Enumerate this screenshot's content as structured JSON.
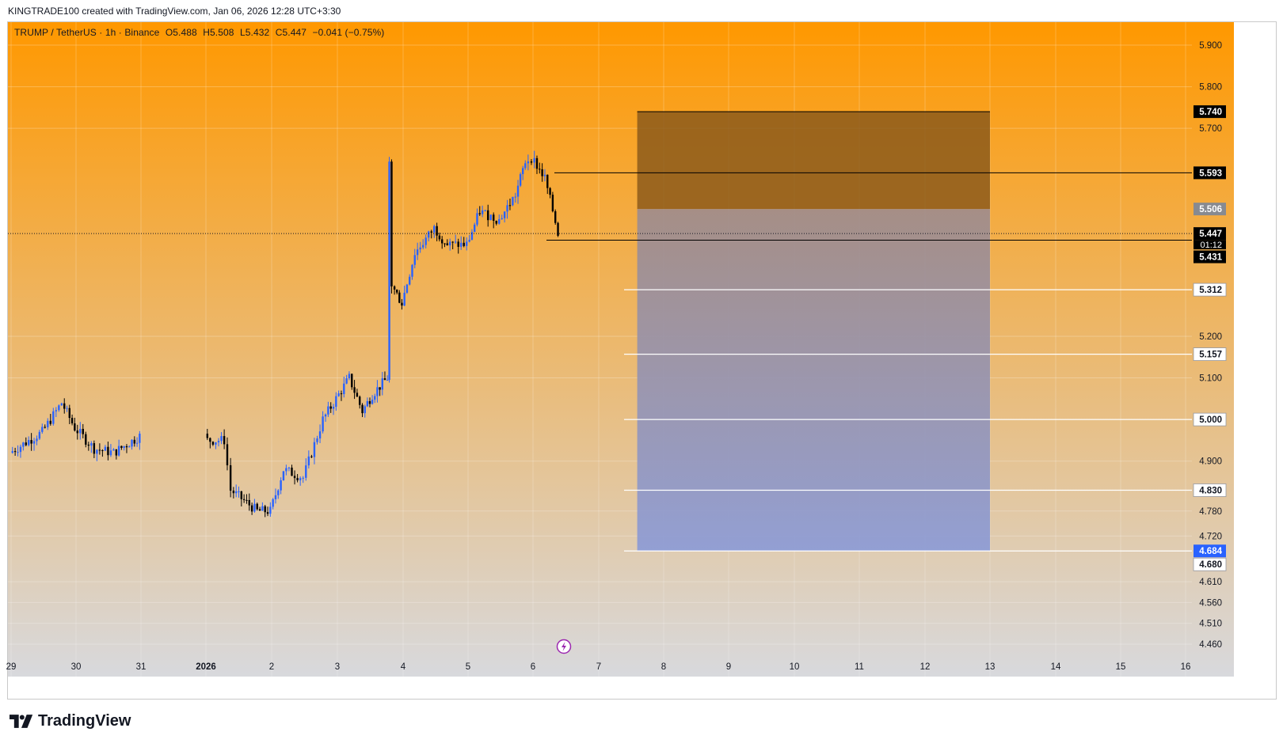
{
  "header": {
    "created_text": "KINGTRADE100 created with TradingView.com, Jan 06, 2026 12:28 UTC+3:30"
  },
  "legend": {
    "symbol": "TRUMP / TetherUS · 1h · Binance",
    "open": "O5.488",
    "high": "H5.508",
    "low": "L5.432",
    "close": "C5.447",
    "change": "−0.041 (−0.75%)"
  },
  "branding": {
    "name": "TradingView"
  },
  "colors": {
    "bg_top": "#ff9800",
    "bg_bottom": "#d8d9dd",
    "candle_up": "#2962ff",
    "candle_down": "#000000",
    "stop_zone": "#8c5a1b",
    "target_zone": "#8c9bd6"
  },
  "chart_data": {
    "type": "candlestick",
    "symbol": "TRUMP / TetherUS",
    "timeframe": "1h",
    "exchange": "Binance",
    "x_tick_labels": [
      "29",
      "30",
      "31",
      "2026",
      "2",
      "3",
      "4",
      "5",
      "6",
      "7",
      "8",
      "9",
      "10",
      "11",
      "12",
      "13",
      "14",
      "15",
      "16"
    ],
    "y_tick_labels": [
      "5.900",
      "5.800",
      "5.700",
      "5.200",
      "5.100",
      "4.900",
      "4.780",
      "4.720",
      "4.610",
      "4.560",
      "4.510",
      "4.460"
    ],
    "ylim": [
      4.43,
      5.96
    ],
    "last_price": 5.447,
    "countdown": "01:12",
    "price_path": [
      [
        "29",
        4.92
      ],
      [
        "29.5",
        4.97
      ],
      [
        "29.8",
        5.04
      ],
      [
        "30",
        4.98
      ],
      [
        "30.3",
        4.93
      ],
      [
        "30.6",
        4.92
      ],
      [
        "31",
        4.96
      ],
      [
        "31.3",
        4.93
      ],
      [
        "31.6",
        4.91
      ],
      [
        "2026",
        4.95
      ],
      [
        "1.3",
        4.95
      ],
      [
        "1.4",
        4.83
      ],
      [
        "1.8",
        4.78
      ],
      [
        "2",
        4.78
      ],
      [
        "2.2",
        4.88
      ],
      [
        "2.5",
        4.86
      ],
      [
        "2.8",
        5.0
      ],
      [
        "3",
        5.05
      ],
      [
        "3.2",
        5.1
      ],
      [
        "3.4",
        5.02
      ],
      [
        "3.55",
        5.06
      ],
      [
        "3.78",
        5.1
      ],
      [
        "3.8",
        5.62
      ],
      [
        "3.85",
        5.32
      ],
      [
        "4",
        5.28
      ],
      [
        "4.2",
        5.4
      ],
      [
        "4.5",
        5.46
      ],
      [
        "4.7",
        5.42
      ],
      [
        "5",
        5.42
      ],
      [
        "5.2",
        5.5
      ],
      [
        "5.5",
        5.48
      ],
      [
        "5.75",
        5.54
      ],
      [
        "5.9",
        5.62
      ],
      [
        "6",
        5.63
      ],
      [
        "6.2",
        5.58
      ],
      [
        "6.4",
        5.45
      ]
    ],
    "position": {
      "type": "short",
      "start_x": "7.3",
      "end_x": "13",
      "stop": 5.74,
      "entry": 5.506,
      "target": 4.684
    },
    "horizontal_lines": [
      {
        "price": 5.593,
        "label": "5.593",
        "style": "dark"
      },
      {
        "price": 5.431,
        "label": "5.431",
        "style": "dark"
      },
      {
        "price": 5.312,
        "label": "5.312",
        "style": "light"
      },
      {
        "price": 5.157,
        "label": "5.157",
        "style": "light"
      },
      {
        "price": 5.0,
        "label": "5.000",
        "style": "light"
      },
      {
        "price": 4.83,
        "label": "4.830",
        "style": "light"
      },
      {
        "price": 4.684,
        "label": "4.684",
        "style": "light"
      }
    ],
    "price_labels": [
      {
        "price": 5.74,
        "label": "5.740",
        "style": "dark"
      },
      {
        "price": 5.593,
        "label": "5.593",
        "style": "dark"
      },
      {
        "price": 5.506,
        "label": "5.506",
        "style": "grey"
      },
      {
        "price": 5.447,
        "label": "5.447",
        "style": "dark"
      },
      {
        "price": 5.431,
        "label": "5.431",
        "style": "dark"
      },
      {
        "price": 5.312,
        "label": "5.312",
        "style": "light"
      },
      {
        "price": 5.157,
        "label": "5.157",
        "style": "light"
      },
      {
        "price": 5.0,
        "label": "5.000",
        "style": "light"
      },
      {
        "price": 4.83,
        "label": "4.830",
        "style": "light"
      },
      {
        "price": 4.684,
        "label": "4.684",
        "style": "blue"
      },
      {
        "price": 4.68,
        "label": "4.680",
        "style": "light"
      }
    ]
  }
}
